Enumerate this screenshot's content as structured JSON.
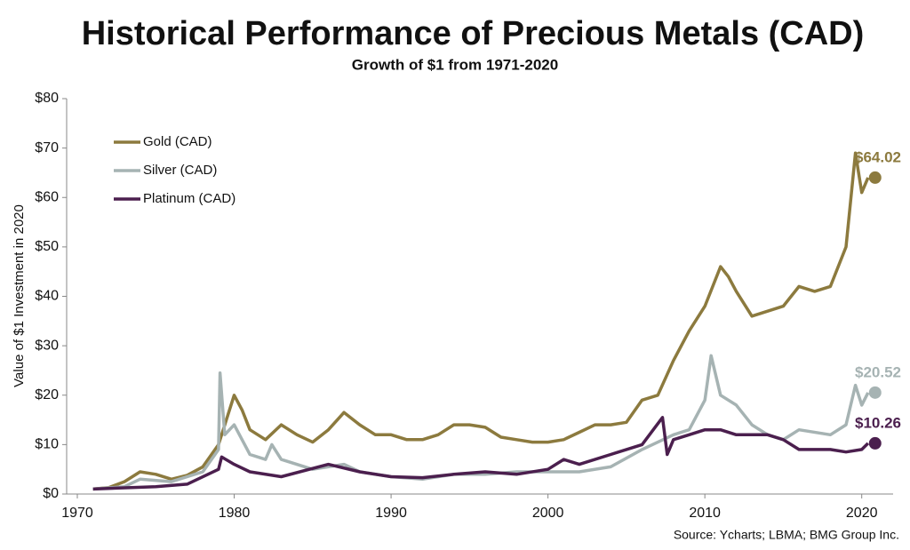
{
  "chart_data": {
    "type": "line",
    "title": "Historical Performance of Precious Metals (CAD)",
    "subtitle": "Growth of $1 from 1971-2020",
    "y_label": "Value of $1 Investment in 2020",
    "source": "Source: Ycharts; LBMA; BMG Group Inc.",
    "xlim": [
      1970,
      2022
    ],
    "xticks": [
      1970,
      1980,
      1990,
      2000,
      2010,
      2020
    ],
    "ylim": [
      0,
      80
    ],
    "yticks": [
      {
        "value": 0,
        "label": "$0"
      },
      {
        "value": 10,
        "label": "$10"
      },
      {
        "value": 20,
        "label": "$20"
      },
      {
        "value": 30,
        "label": "$30"
      },
      {
        "value": 40,
        "label": "$40"
      },
      {
        "value": 50,
        "label": "$50"
      },
      {
        "value": 60,
        "label": "$60"
      },
      {
        "value": 70,
        "label": "$70"
      },
      {
        "value": 80,
        "label": "$80"
      }
    ],
    "legend": "top-left",
    "series": [
      {
        "name": "Gold (CAD)",
        "color": "#8c7a3e",
        "end_label": "$64.02",
        "x": [
          1971,
          1972,
          1973,
          1974,
          1975,
          1976,
          1977,
          1978,
          1979,
          1979.5,
          1980,
          1980.5,
          1981,
          1982,
          1983,
          1984,
          1985,
          1986,
          1987,
          1988,
          1989,
          1990,
          1991,
          1992,
          1993,
          1994,
          1995,
          1996,
          1997,
          1998,
          1999,
          2000,
          2001,
          2002,
          2003,
          2004,
          2005,
          2006,
          2007,
          2008,
          2009,
          2010,
          2011,
          2011.5,
          2012,
          2013,
          2014,
          2015,
          2016,
          2017,
          2018,
          2019,
          2019.6,
          2020,
          2020.4
        ],
        "values": [
          1,
          1.3,
          2.5,
          4.5,
          4,
          3,
          3.8,
          5.5,
          10,
          15,
          20,
          17,
          13,
          11,
          14,
          12,
          10.5,
          13,
          16.5,
          14,
          12,
          12,
          11,
          11,
          12,
          14,
          14,
          13.5,
          11.5,
          11,
          10.5,
          10.5,
          11,
          12.5,
          14,
          14,
          14.5,
          19,
          20,
          27,
          33,
          38,
          46,
          44,
          41,
          36,
          37,
          38,
          42,
          41,
          42,
          50,
          69,
          61,
          64.02
        ]
      },
      {
        "name": "Silver (CAD)",
        "color": "#a6b3b3",
        "end_label": "$20.52",
        "x": [
          1971,
          1973,
          1974,
          1976,
          1978,
          1979,
          1979.1,
          1979.4,
          1980,
          1981,
          1982,
          1982.4,
          1983,
          1985,
          1987,
          1988,
          1990,
          1992,
          1994,
          1996,
          1998,
          2000,
          2002,
          2004,
          2006,
          2008,
          2009,
          2010,
          2010.4,
          2011,
          2012,
          2013,
          2014,
          2015,
          2016,
          2018,
          2019,
          2019.6,
          2020,
          2020.4
        ],
        "values": [
          1,
          1.5,
          3,
          2.5,
          4.5,
          9,
          24.5,
          12,
          14,
          8,
          7,
          10,
          7,
          5,
          6,
          4.5,
          3.5,
          3,
          4,
          4,
          4.5,
          4.5,
          4.5,
          5.5,
          9,
          12,
          13,
          19,
          28,
          20,
          18,
          14,
          12,
          11,
          13,
          12,
          14,
          22,
          18,
          20.52
        ]
      },
      {
        "name": "Platinum (CAD)",
        "color": "#4b1f4e",
        "end_label": "$10.26",
        "x": [
          1971,
          1975,
          1977,
          1979,
          1979.2,
          1980,
          1981,
          1983,
          1986,
          1988,
          1990,
          1992,
          1994,
          1996,
          1998,
          2000,
          2001,
          2002,
          2004,
          2006,
          2007.3,
          2007.6,
          2008,
          2009,
          2010,
          2011,
          2012,
          2014,
          2015,
          2016,
          2018,
          2019,
          2020,
          2020.4
        ],
        "values": [
          1,
          1.5,
          2,
          5,
          7.5,
          6,
          4.5,
          3.5,
          6,
          4.5,
          3.5,
          3.3,
          4,
          4.5,
          4,
          5,
          7,
          6,
          8,
          10,
          15.5,
          8,
          11,
          12,
          13,
          13,
          12,
          12,
          11,
          9,
          9,
          8.5,
          9,
          10.26
        ]
      }
    ]
  }
}
